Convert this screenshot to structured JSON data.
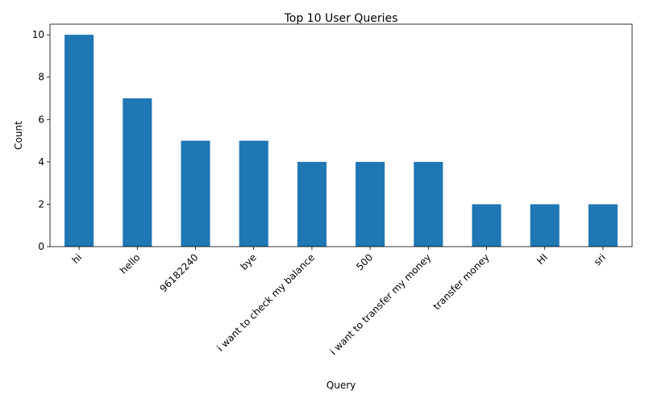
{
  "chart_data": {
    "type": "bar",
    "title": "Top 10 User Queries",
    "xlabel": "Query",
    "ylabel": "Count",
    "categories": [
      "hi",
      "hello",
      "96182240",
      "bye",
      "i want to check my balance",
      "500",
      "i want to transfer my money",
      "transfer money",
      "HI",
      "sri"
    ],
    "values": [
      10,
      7,
      5,
      5,
      4,
      4,
      4,
      2,
      2,
      2
    ],
    "ylim": [
      0,
      10.5
    ],
    "yticks": [
      0,
      2,
      4,
      6,
      8,
      10
    ],
    "bar_color": "#1f77b4",
    "grid": false,
    "legend": "none"
  }
}
